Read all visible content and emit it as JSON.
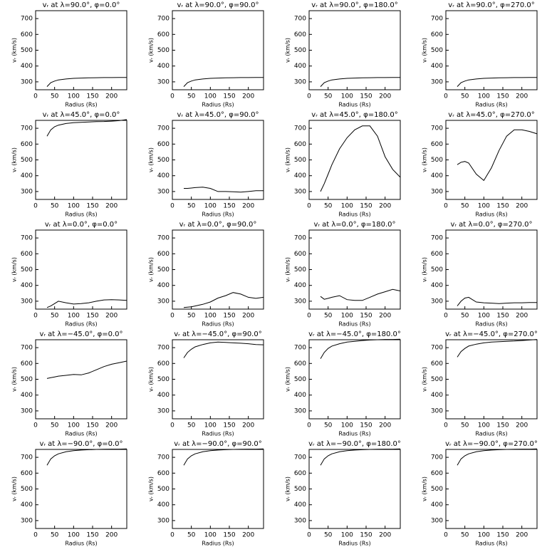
{
  "chart_data": [
    {
      "type": "line",
      "title": "vᵣ at λ=90.0°, φ=0.0°",
      "x_label": "Radius (Rs)",
      "y_label": "vᵣ (km/s)",
      "color": "#000000",
      "x": [
        30,
        40,
        50,
        60,
        80,
        100,
        120,
        140,
        160,
        180,
        200,
        220,
        240
      ],
      "values": [
        270,
        295,
        305,
        312,
        318,
        322,
        324,
        325,
        326,
        327,
        327,
        328,
        328
      ],
      "xlim": [
        0,
        240
      ],
      "ylim": [
        250,
        750
      ],
      "xticks": [
        0,
        50,
        100,
        150,
        200
      ],
      "yticks": [
        300,
        400,
        500,
        600,
        700
      ]
    },
    {
      "type": "line",
      "title": "vᵣ at λ=90.0°, φ=90.0°",
      "x_label": "Radius (Rs)",
      "y_label": "vᵣ (km/s)",
      "color": "#000000",
      "x": [
        30,
        40,
        50,
        60,
        80,
        100,
        120,
        140,
        160,
        180,
        200,
        220,
        240
      ],
      "values": [
        270,
        295,
        305,
        312,
        318,
        322,
        324,
        325,
        326,
        327,
        327,
        328,
        328
      ],
      "xlim": [
        0,
        240
      ],
      "ylim": [
        250,
        750
      ],
      "xticks": [
        0,
        50,
        100,
        150,
        200
      ],
      "yticks": [
        300,
        400,
        500,
        600,
        700
      ]
    },
    {
      "type": "line",
      "title": "vᵣ at λ=90.0°, φ=180.0°",
      "x_label": "Radius (Rs)",
      "y_label": "vᵣ (km/s)",
      "color": "#000000",
      "x": [
        30,
        40,
        50,
        60,
        80,
        100,
        120,
        140,
        160,
        180,
        200,
        220,
        240
      ],
      "values": [
        270,
        295,
        305,
        312,
        318,
        322,
        324,
        325,
        326,
        327,
        327,
        328,
        328
      ],
      "xlim": [
        0,
        240
      ],
      "ylim": [
        250,
        750
      ],
      "xticks": [
        0,
        50,
        100,
        150,
        200
      ],
      "yticks": [
        300,
        400,
        500,
        600,
        700
      ]
    },
    {
      "type": "line",
      "title": "vᵣ at λ=90.0°, φ=270.0°",
      "x_label": "Radius (Rs)",
      "y_label": "vᵣ (km/s)",
      "color": "#000000",
      "x": [
        30,
        40,
        50,
        60,
        80,
        100,
        120,
        140,
        160,
        180,
        200,
        220,
        240
      ],
      "values": [
        270,
        295,
        305,
        312,
        318,
        322,
        324,
        325,
        326,
        327,
        327,
        328,
        328
      ],
      "xlim": [
        0,
        240
      ],
      "ylim": [
        250,
        750
      ],
      "xticks": [
        0,
        50,
        100,
        150,
        200
      ],
      "yticks": [
        300,
        400,
        500,
        600,
        700
      ]
    },
    {
      "type": "line",
      "title": "vᵣ at λ=45.0°, φ=0.0°",
      "x_label": "Radius (Rs)",
      "y_label": "vᵣ (km/s)",
      "color": "#000000",
      "x": [
        30,
        40,
        50,
        60,
        80,
        100,
        120,
        140,
        160,
        180,
        200,
        220,
        240
      ],
      "values": [
        650,
        690,
        710,
        720,
        730,
        735,
        738,
        740,
        742,
        743,
        745,
        748,
        755
      ],
      "xlim": [
        0,
        240
      ],
      "ylim": [
        250,
        750
      ],
      "xticks": [
        0,
        50,
        100,
        150,
        200
      ],
      "yticks": [
        300,
        400,
        500,
        600,
        700
      ]
    },
    {
      "type": "line",
      "title": "vᵣ at λ=45.0°, φ=90.0°",
      "x_label": "Radius (Rs)",
      "y_label": "vᵣ (km/s)",
      "color": "#000000",
      "x": [
        30,
        40,
        50,
        60,
        80,
        100,
        120,
        140,
        160,
        180,
        200,
        220,
        240
      ],
      "values": [
        320,
        320,
        322,
        325,
        328,
        320,
        300,
        300,
        298,
        296,
        300,
        305,
        305
      ],
      "xlim": [
        0,
        240
      ],
      "ylim": [
        250,
        750
      ],
      "xticks": [
        0,
        50,
        100,
        150,
        200
      ],
      "yticks": [
        300,
        400,
        500,
        600,
        700
      ]
    },
    {
      "type": "line",
      "title": "vᵣ at λ=45.0°, φ=180.0°",
      "x_label": "Radius (Rs)",
      "y_label": "vᵣ (km/s)",
      "color": "#000000",
      "x": [
        30,
        40,
        50,
        60,
        80,
        100,
        120,
        140,
        160,
        180,
        200,
        220,
        240
      ],
      "values": [
        300,
        350,
        410,
        470,
        570,
        640,
        690,
        715,
        715,
        650,
        520,
        440,
        390
      ],
      "xlim": [
        0,
        240
      ],
      "ylim": [
        250,
        750
      ],
      "xticks": [
        0,
        50,
        100,
        150,
        200
      ],
      "yticks": [
        300,
        400,
        500,
        600,
        700
      ]
    },
    {
      "type": "line",
      "title": "vᵣ at λ=45.0°, φ=270.0°",
      "x_label": "Radius (Rs)",
      "y_label": "vᵣ (km/s)",
      "color": "#000000",
      "x": [
        30,
        40,
        50,
        60,
        80,
        100,
        120,
        140,
        160,
        180,
        200,
        220,
        240
      ],
      "values": [
        470,
        485,
        490,
        480,
        410,
        370,
        450,
        560,
        650,
        690,
        690,
        680,
        665
      ],
      "xlim": [
        0,
        240
      ],
      "ylim": [
        250,
        750
      ],
      "xticks": [
        0,
        50,
        100,
        150,
        200
      ],
      "yticks": [
        300,
        400,
        500,
        600,
        700
      ]
    },
    {
      "type": "line",
      "title": "vᵣ at λ=0.0°, φ=0.0°",
      "x_label": "Radius (Rs)",
      "y_label": "vᵣ (km/s)",
      "color": "#000000",
      "x": [
        30,
        40,
        50,
        60,
        80,
        100,
        120,
        140,
        160,
        180,
        200,
        220,
        240
      ],
      "values": [
        260,
        270,
        285,
        300,
        290,
        282,
        285,
        290,
        300,
        308,
        310,
        308,
        305
      ],
      "xlim": [
        0,
        240
      ],
      "ylim": [
        250,
        750
      ],
      "xticks": [
        0,
        50,
        100,
        150,
        200
      ],
      "yticks": [
        300,
        400,
        500,
        600,
        700
      ]
    },
    {
      "type": "line",
      "title": "vᵣ at λ=0.0°, φ=90.0°",
      "x_label": "Radius (Rs)",
      "y_label": "vᵣ (km/s)",
      "color": "#000000",
      "x": [
        30,
        40,
        50,
        60,
        80,
        100,
        120,
        140,
        160,
        180,
        200,
        220,
        240
      ],
      "values": [
        260,
        262,
        265,
        270,
        280,
        295,
        320,
        335,
        355,
        345,
        325,
        318,
        325
      ],
      "xlim": [
        0,
        240
      ],
      "ylim": [
        250,
        750
      ],
      "xticks": [
        0,
        50,
        100,
        150,
        200
      ],
      "yticks": [
        300,
        400,
        500,
        600,
        700
      ]
    },
    {
      "type": "line",
      "title": "vᵣ at λ=0.0°, φ=180.0°",
      "x_label": "Radius (Rs)",
      "y_label": "vᵣ (km/s)",
      "color": "#000000",
      "x": [
        30,
        40,
        50,
        60,
        80,
        100,
        120,
        140,
        160,
        180,
        200,
        220,
        240
      ],
      "values": [
        330,
        312,
        318,
        325,
        335,
        310,
        305,
        305,
        325,
        345,
        360,
        375,
        365
      ],
      "xlim": [
        0,
        240
      ],
      "ylim": [
        250,
        750
      ],
      "xticks": [
        0,
        50,
        100,
        150,
        200
      ],
      "yticks": [
        300,
        400,
        500,
        600,
        700
      ]
    },
    {
      "type": "line",
      "title": "vᵣ at λ=0.0°, φ=270.0°",
      "x_label": "Radius (Rs)",
      "y_label": "vᵣ (km/s)",
      "color": "#000000",
      "x": [
        30,
        40,
        50,
        60,
        80,
        100,
        120,
        140,
        160,
        180,
        200,
        220,
        240
      ],
      "values": [
        270,
        300,
        320,
        325,
        295,
        290,
        288,
        285,
        288,
        290,
        290,
        292,
        292
      ],
      "xlim": [
        0,
        240
      ],
      "ylim": [
        250,
        750
      ],
      "xticks": [
        0,
        50,
        100,
        150,
        200
      ],
      "yticks": [
        300,
        400,
        500,
        600,
        700
      ]
    },
    {
      "type": "line",
      "title": "vᵣ at λ=−45.0°, φ=0.0°",
      "x_label": "Radius (Rs)",
      "y_label": "vᵣ (km/s)",
      "color": "#000000",
      "x": [
        30,
        40,
        50,
        60,
        80,
        100,
        120,
        140,
        160,
        180,
        200,
        220,
        240
      ],
      "values": [
        505,
        510,
        515,
        520,
        525,
        530,
        528,
        540,
        560,
        580,
        595,
        605,
        615
      ],
      "xlim": [
        0,
        240
      ],
      "ylim": [
        250,
        750
      ],
      "xticks": [
        0,
        50,
        100,
        150,
        200
      ],
      "yticks": [
        300,
        400,
        500,
        600,
        700
      ]
    },
    {
      "type": "line",
      "title": "vᵣ at λ=−45.0°, φ=90.0°",
      "x_label": "Radius (Rs)",
      "y_label": "vᵣ (km/s)",
      "color": "#000000",
      "x": [
        30,
        40,
        50,
        60,
        80,
        100,
        120,
        140,
        160,
        180,
        200,
        220,
        240
      ],
      "values": [
        635,
        670,
        690,
        705,
        720,
        730,
        735,
        733,
        730,
        728,
        725,
        720,
        718
      ],
      "xlim": [
        0,
        240
      ],
      "ylim": [
        250,
        750
      ],
      "xticks": [
        0,
        50,
        100,
        150,
        200
      ],
      "yticks": [
        300,
        400,
        500,
        600,
        700
      ]
    },
    {
      "type": "line",
      "title": "vᵣ at λ=−45.0°, φ=180.0°",
      "x_label": "Radius (Rs)",
      "y_label": "vᵣ (km/s)",
      "color": "#000000",
      "x": [
        30,
        40,
        50,
        60,
        80,
        100,
        120,
        140,
        160,
        180,
        200,
        220,
        240
      ],
      "values": [
        630,
        670,
        695,
        710,
        725,
        735,
        740,
        745,
        748,
        750,
        752,
        752,
        753
      ],
      "xlim": [
        0,
        240
      ],
      "ylim": [
        250,
        750
      ],
      "xticks": [
        0,
        50,
        100,
        150,
        200
      ],
      "yticks": [
        300,
        400,
        500,
        600,
        700
      ]
    },
    {
      "type": "line",
      "title": "vᵣ at λ=−45.0°, φ=270.0°",
      "x_label": "Radius (Rs)",
      "y_label": "vᵣ (km/s)",
      "color": "#000000",
      "x": [
        30,
        40,
        50,
        60,
        80,
        100,
        120,
        140,
        160,
        180,
        200,
        220,
        240
      ],
      "values": [
        640,
        675,
        695,
        710,
        722,
        730,
        735,
        738,
        740,
        742,
        745,
        748,
        752
      ],
      "xlim": [
        0,
        240
      ],
      "ylim": [
        250,
        750
      ],
      "xticks": [
        0,
        50,
        100,
        150,
        200
      ],
      "yticks": [
        300,
        400,
        500,
        600,
        700
      ]
    },
    {
      "type": "line",
      "title": "vᵣ at λ=−90.0°, φ=0.0°",
      "x_label": "Radius (Rs)",
      "y_label": "vᵣ (km/s)",
      "color": "#000000",
      "x": [
        30,
        40,
        50,
        60,
        80,
        100,
        120,
        140,
        160,
        180,
        200,
        220,
        240
      ],
      "values": [
        650,
        690,
        710,
        722,
        735,
        742,
        746,
        748,
        750,
        751,
        752,
        752,
        753
      ],
      "xlim": [
        0,
        240
      ],
      "ylim": [
        250,
        750
      ],
      "xticks": [
        0,
        50,
        100,
        150,
        200
      ],
      "yticks": [
        300,
        400,
        500,
        600,
        700
      ]
    },
    {
      "type": "line",
      "title": "vᵣ at λ=−90.0°, φ=90.0°",
      "x_label": "Radius (Rs)",
      "y_label": "vᵣ (km/s)",
      "color": "#000000",
      "x": [
        30,
        40,
        50,
        60,
        80,
        100,
        120,
        140,
        160,
        180,
        200,
        220,
        240
      ],
      "values": [
        650,
        690,
        710,
        722,
        735,
        742,
        746,
        748,
        750,
        751,
        752,
        752,
        753
      ],
      "xlim": [
        0,
        240
      ],
      "ylim": [
        250,
        750
      ],
      "xticks": [
        0,
        50,
        100,
        150,
        200
      ],
      "yticks": [
        300,
        400,
        500,
        600,
        700
      ]
    },
    {
      "type": "line",
      "title": "vᵣ at λ=−90.0°, φ=180.0°",
      "x_label": "Radius (Rs)",
      "y_label": "vᵣ (km/s)",
      "color": "#000000",
      "x": [
        30,
        40,
        50,
        60,
        80,
        100,
        120,
        140,
        160,
        180,
        200,
        220,
        240
      ],
      "values": [
        650,
        690,
        710,
        722,
        735,
        742,
        746,
        748,
        750,
        751,
        752,
        752,
        753
      ],
      "xlim": [
        0,
        240
      ],
      "ylim": [
        250,
        750
      ],
      "xticks": [
        0,
        50,
        100,
        150,
        200
      ],
      "yticks": [
        300,
        400,
        500,
        600,
        700
      ]
    },
    {
      "type": "line",
      "title": "vᵣ at λ=−90.0°, φ=270.0°",
      "x_label": "Radius (Rs)",
      "y_label": "vᵣ (km/s)",
      "color": "#000000",
      "x": [
        30,
        40,
        50,
        60,
        80,
        100,
        120,
        140,
        160,
        180,
        200,
        220,
        240
      ],
      "values": [
        650,
        690,
        710,
        722,
        735,
        742,
        746,
        748,
        750,
        751,
        752,
        752,
        753
      ],
      "xlim": [
        0,
        240
      ],
      "ylim": [
        250,
        750
      ],
      "xticks": [
        0,
        50,
        100,
        150,
        200
      ],
      "yticks": [
        300,
        400,
        500,
        600,
        700
      ]
    }
  ]
}
